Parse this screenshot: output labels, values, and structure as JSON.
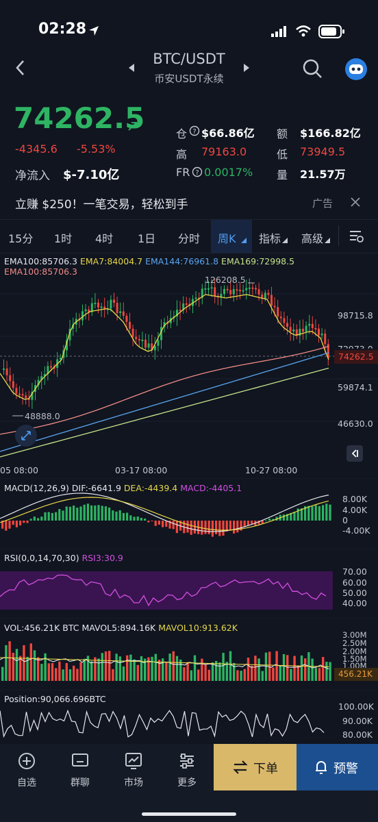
{
  "status": {
    "time": "02:28"
  },
  "header": {
    "pair": "BTC/USDT",
    "subtitle": "币安USDT永续"
  },
  "ticker": {
    "price": "74262.5",
    "change": "-4345.6",
    "change_pct": "-5.53%",
    "netflow_label": "净流入",
    "netflow_value": "$-7.10亿",
    "oi_label": "仓",
    "oi_value": "$66.86亿",
    "amount_label": "额",
    "amount_value": "$166.82亿",
    "high_label": "高",
    "high_value": "79163.0",
    "low_label": "低",
    "low_value": "73949.5",
    "fr_label": "FR",
    "fr_value": "0.0017%",
    "vol_label": "量",
    "vol_value": "21.57万"
  },
  "promo": {
    "text": "立赚 $250！一笔交易，轻松到手",
    "ad_label": "广告"
  },
  "tabs": [
    "15分",
    "1时",
    "4时",
    "1日",
    "分时",
    "周K",
    "指标",
    "高级"
  ],
  "active_tab": "周K",
  "main_chart": {
    "ema_legend": [
      {
        "text": "EMA100:85706.3",
        "color": "#e6e8ec"
      },
      {
        "text": "EMA7:84004.7",
        "color": "#e8d84a"
      },
      {
        "text": "EMA144:76961.8",
        "color": "#5aa6f0"
      },
      {
        "text": "EMA169:72998.5",
        "color": "#c8e38a"
      }
    ],
    "ema_legend2": {
      "text": "EMA100:85706.3",
      "color": "#f08b86"
    },
    "y_ticks": [
      "98715.8",
      "72973.0",
      "59874.1",
      "46630.0"
    ],
    "current_price_tag": "74262.5",
    "high_marker": "126208.5",
    "low_marker": "48888.0",
    "x_ticks": [
      "05 08:00",
      "03-17 08:00",
      "10-27 08:00"
    ]
  },
  "macd": {
    "label": "MACD(12,26,9)",
    "dif": "DIF:-6641.9",
    "dea": "DEA:-4439.4",
    "macd": "MACD:-4405.1",
    "y_ticks": [
      "8.00K",
      "4.00K",
      "0",
      "-4.00K"
    ]
  },
  "rsi": {
    "label": "RSI(0,0,14,70,30)",
    "rsi3": "RSI3:30.9",
    "y_ticks": [
      "70.00",
      "60.00",
      "50.00",
      "40.00"
    ]
  },
  "vol": {
    "label": "VOL:456.21K BTC",
    "mavol5": "MAVOL5:894.16K",
    "mavol10": "MAVOL10:913.62K",
    "y_ticks": [
      "3.00M",
      "2.50M",
      "2.00M",
      "1.50M",
      "1.00M"
    ],
    "current_tag": "456.21K"
  },
  "position": {
    "label": "Position:90,066.696BTC",
    "y_ticks": [
      "100.00K",
      "90.00K",
      "80.00K"
    ]
  },
  "nav": {
    "items": [
      "自选",
      "群聊",
      "市场",
      "更多"
    ],
    "order_label": "下单",
    "alert_label": "预警"
  },
  "colors": {
    "up": "#2eb463",
    "down": "#f0473e",
    "bg": "#101520",
    "order_btn": "#d9b86a",
    "alert_btn": "#1c4f8f"
  }
}
